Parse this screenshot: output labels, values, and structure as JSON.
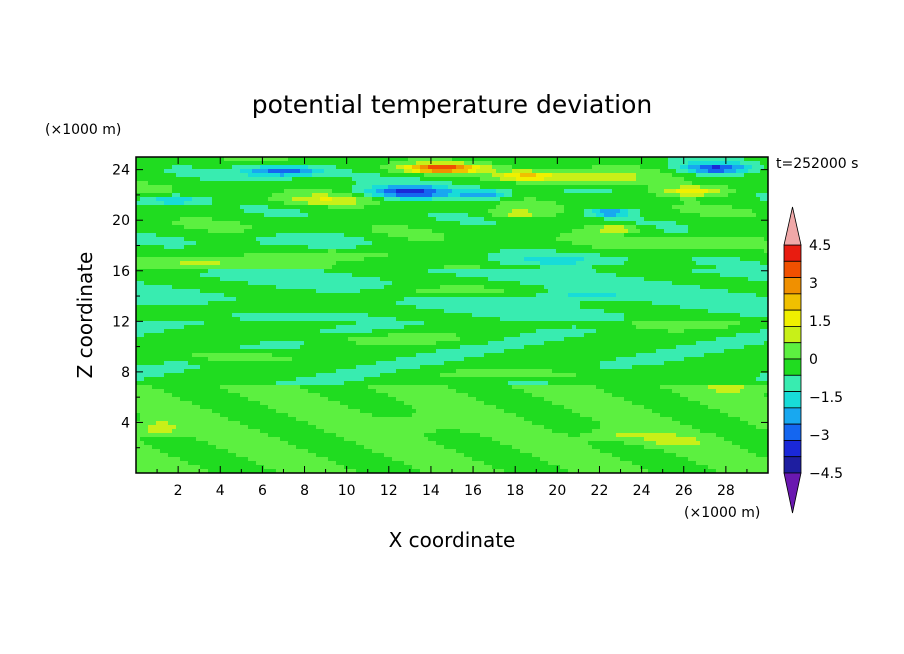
{
  "chart_data": {
    "type": "heatmap",
    "title": "potential temperature deviation",
    "xlabel": "X coordinate",
    "ylabel": "Z coordinate",
    "x_unit": "(×1000 m)",
    "y_unit": "(×1000 m)",
    "time_label": "t=252000 s",
    "xlim": [
      0,
      30
    ],
    "ylim": [
      0,
      25
    ],
    "x_ticks": [
      2,
      4,
      6,
      8,
      10,
      12,
      14,
      16,
      18,
      20,
      22,
      24,
      26,
      28
    ],
    "y_ticks": [
      4,
      8,
      12,
      16,
      20,
      24
    ],
    "colorbar": {
      "tick_values": [
        4.5,
        3,
        1.5,
        0,
        -1.5,
        -3,
        -4.5
      ],
      "tick_labels": [
        "4.5",
        "3",
        "1.5",
        "0",
        "−1.5",
        "−3",
        "−4.5"
      ],
      "levels": [
        -5.25,
        -4.5,
        -3.75,
        -3,
        -2.25,
        -1.5,
        -0.75,
        0,
        0.75,
        1.5,
        2.25,
        3,
        3.75,
        4.5,
        5.25
      ],
      "colors": [
        "#6a18b0",
        "#1e1ea0",
        "#1a28d8",
        "#1466f0",
        "#18a8f0",
        "#18dcd8",
        "#38ecb0",
        "#20dc20",
        "#5cf040",
        "#c8f018",
        "#f0f000",
        "#f0c000",
        "#f09000",
        "#f05000",
        "#e81c10",
        "#f0a8a8"
      ]
    },
    "features": [
      {
        "x": 14.5,
        "z": 24.1,
        "rx": 1.8,
        "rz": 0.35,
        "v": 4.6
      },
      {
        "x": 13.0,
        "z": 22.2,
        "rx": 2.2,
        "rz": 0.55,
        "v": -3.6
      },
      {
        "x": 7.0,
        "z": 23.9,
        "rx": 1.9,
        "rz": 0.45,
        "v": -3.2
      },
      {
        "x": 27.5,
        "z": 24.1,
        "rx": 1.6,
        "rz": 0.45,
        "v": -3.3
      },
      {
        "x": 18.5,
        "z": 23.5,
        "rx": 1.5,
        "rz": 0.4,
        "v": 2.5
      },
      {
        "x": 26.5,
        "z": 22.3,
        "rx": 1.8,
        "rz": 0.4,
        "v": 2.3
      },
      {
        "x": 16.5,
        "z": 22.0,
        "rx": 1.2,
        "rz": 0.4,
        "v": -2.6
      },
      {
        "x": 22.5,
        "z": 20.6,
        "rx": 1.0,
        "rz": 0.3,
        "v": -2.8
      },
      {
        "x": 22.8,
        "z": 19.3,
        "rx": 1.2,
        "rz": 0.3,
        "v": 2.0
      },
      {
        "x": 21.5,
        "z": 23.3,
        "rx": 2.6,
        "rz": 0.5,
        "v": 1.6
      },
      {
        "x": 9.0,
        "z": 21.6,
        "rx": 2.4,
        "rz": 0.45,
        "v": 1.5
      },
      {
        "x": 18.0,
        "z": 20.5,
        "rx": 1.4,
        "rz": 0.35,
        "v": 1.4
      },
      {
        "x": 1.8,
        "z": 21.6,
        "rx": 1.4,
        "rz": 0.4,
        "v": -2.0
      },
      {
        "x": 3.0,
        "z": 16.5,
        "rx": 2.6,
        "rz": 0.5,
        "v": 1.3
      },
      {
        "x": 10.0,
        "z": 17.3,
        "rx": 2.6,
        "rz": 0.45,
        "v": 1.2
      },
      {
        "x": 14.0,
        "z": 14.3,
        "rx": 3.6,
        "rz": 0.55,
        "v": 1.3
      },
      {
        "x": 5.0,
        "z": 13.1,
        "rx": 3.4,
        "rz": 0.5,
        "v": 1.2
      },
      {
        "x": 21.0,
        "z": 14.0,
        "rx": 2.2,
        "rz": 0.45,
        "v": -1.1
      },
      {
        "x": 25.0,
        "z": 11.8,
        "rx": 3.0,
        "rz": 0.45,
        "v": 1.1
      },
      {
        "x": 12.0,
        "z": 10.6,
        "rx": 3.4,
        "rz": 0.4,
        "v": 1.0
      },
      {
        "x": 4.5,
        "z": 9.2,
        "rx": 2.6,
        "rz": 0.4,
        "v": 1.3
      },
      {
        "x": 19.5,
        "z": 7.8,
        "rx": 4.5,
        "rz": 0.45,
        "v": 1.0
      },
      {
        "x": 28.5,
        "z": 6.8,
        "rx": 1.4,
        "rz": 0.5,
        "v": 0.9
      },
      {
        "x": 1.0,
        "z": 3.5,
        "rx": 1.0,
        "rz": 0.6,
        "v": 1.4
      },
      {
        "x": 23.0,
        "z": 3.0,
        "rx": 1.6,
        "rz": 0.5,
        "v": 0.9
      },
      {
        "x": 25.5,
        "z": 2.5,
        "rx": 1.6,
        "rz": 0.5,
        "v": 0.8
      },
      {
        "x": 14.0,
        "z": 4.0,
        "rx": 2.0,
        "rz": 0.8,
        "v": 0.6
      },
      {
        "x": 8.0,
        "z": 18.5,
        "rx": 3.0,
        "rz": 0.5,
        "v": -0.9
      },
      {
        "x": 20.0,
        "z": 16.8,
        "rx": 3.6,
        "rz": 0.5,
        "v": -1.0
      },
      {
        "x": 26.0,
        "z": 18.2,
        "rx": 2.6,
        "rz": 0.4,
        "v": 1.0
      }
    ]
  }
}
